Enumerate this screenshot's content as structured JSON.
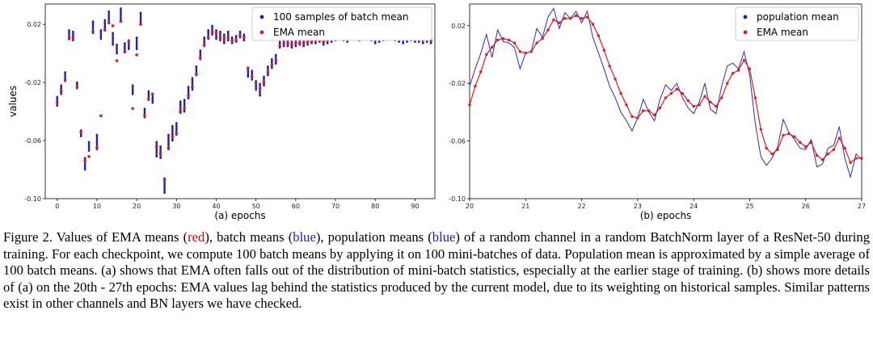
{
  "colors": {
    "blue": "#1f1fbf",
    "red": "#e31a1c",
    "line": "#2a2ad0"
  },
  "chart_data": [
    {
      "type": "scatter",
      "title": "",
      "xlabel": "(a) epochs",
      "ylabel": "values",
      "xlim": [
        -3,
        95
      ],
      "ylim": [
        -0.1,
        0.034
      ],
      "xticks": [
        "0",
        "10",
        "20",
        "30",
        "40",
        "50",
        "60",
        "70",
        "80",
        "90"
      ],
      "yticks": [
        "0.02",
        "-0.02",
        "-0.06",
        "-0.10"
      ],
      "legend": [
        "100 samples of batch mean",
        "EMA mean"
      ],
      "legend_position": "top-right",
      "x": [
        0,
        1,
        2,
        3,
        4,
        5,
        6,
        7,
        8,
        9,
        10,
        11,
        12,
        13,
        14,
        15,
        16,
        17,
        18,
        19,
        20,
        21,
        22,
        23,
        24,
        25,
        26,
        27,
        28,
        29,
        30,
        31,
        32,
        33,
        34,
        35,
        36,
        37,
        38,
        39,
        40,
        41,
        42,
        43,
        44,
        45,
        46,
        47,
        48,
        49,
        50,
        51,
        52,
        53,
        54,
        55,
        56,
        57,
        58,
        59,
        60,
        61,
        62,
        63,
        64,
        65,
        66,
        67,
        68,
        69,
        70,
        71,
        72,
        73,
        74,
        75,
        76,
        77,
        78,
        79,
        80,
        81,
        82,
        83,
        84,
        85,
        86,
        87,
        88,
        89,
        90,
        91,
        92,
        93,
        94
      ],
      "series": [
        {
          "name": "100 samples of batch mean",
          "values": [
            -0.033,
            -0.025,
            -0.016,
            0.013,
            0.012,
            -0.022,
            -0.055,
            -0.076,
            -0.064,
            0.018,
            -0.061,
            0.013,
            0.02,
            0.025,
            0.01,
            0.003,
            0.027,
            0.004,
            0.006,
            -0.025,
            0.007,
            0.024,
            -0.041,
            -0.029,
            -0.031,
            -0.066,
            -0.068,
            -0.091,
            -0.061,
            -0.055,
            -0.052,
            -0.037,
            -0.036,
            -0.027,
            -0.021,
            -0.012,
            -0.001,
            0.008,
            0.013,
            0.016,
            0.013,
            0.012,
            0.01,
            0.012,
            0.009,
            0.01,
            0.013,
            0.011,
            -0.013,
            -0.015,
            -0.022,
            -0.025,
            -0.019,
            -0.012,
            -0.007,
            -0.004,
            0.006,
            0.007,
            0.007,
            0.006,
            0.007,
            0.008,
            0.007,
            0.008,
            0.009,
            0.009,
            0.01,
            0.008,
            0.009,
            0.01,
            0.011,
            0.012,
            0.011,
            0.01,
            0.012,
            0.013,
            0.011,
            0.013,
            0.012,
            0.011,
            0.009,
            0.01,
            0.011,
            0.012,
            0.012,
            0.011,
            0.01,
            0.009,
            0.01,
            0.011,
            0.01,
            0.01,
            0.009,
            0.01,
            0.009
          ],
          "error": [
            0.003,
            0.003,
            0.003,
            0.003,
            0.003,
            0.002,
            0.002,
            0.004,
            0.003,
            0.004,
            0.005,
            0.003,
            0.003,
            0.004,
            0.004,
            0.003,
            0.004,
            0.003,
            0.003,
            0.003,
            0.004,
            0.004,
            0.003,
            0.003,
            0.003,
            0.005,
            0.004,
            0.005,
            0.005,
            0.005,
            0.004,
            0.004,
            0.004,
            0.004,
            0.004,
            0.003,
            0.003,
            0.003,
            0.003,
            0.003,
            0.003,
            0.003,
            0.003,
            0.003,
            0.002,
            0.002,
            0.002,
            0.002,
            0.003,
            0.003,
            0.003,
            0.004,
            0.003,
            0.003,
            0.003,
            0.003,
            0.002,
            0.002,
            0.002,
            0.002,
            0.002,
            0.002,
            0.002,
            0.002,
            0.002,
            0.002,
            0.002,
            0.002,
            0.002,
            0.002,
            0.002,
            0.002,
            0.002,
            0.002,
            0.002,
            0.002,
            0.002,
            0.002,
            0.002,
            0.002,
            0.002,
            0.002,
            0.002,
            0.002,
            0.002,
            0.002,
            0.002,
            0.002,
            0.002,
            0.002,
            0.002,
            0.002,
            0.002,
            0.002,
            0.002
          ]
        },
        {
          "name": "EMA mean",
          "values": [
            -0.034,
            -0.026,
            -0.018,
            0.01,
            0.011,
            -0.023,
            -0.054,
            -0.074,
            -0.071,
            0.015,
            -0.065,
            -0.043,
            0.016,
            0.021,
            0.019,
            -0.005,
            0.022,
            0.001,
            0.008,
            -0.038,
            -0.001,
            0.02,
            -0.043,
            -0.031,
            -0.028,
            -0.064,
            -0.069,
            -0.087,
            -0.065,
            -0.057,
            -0.055,
            -0.04,
            -0.038,
            -0.029,
            -0.023,
            -0.014,
            -0.003,
            0.006,
            0.011,
            0.015,
            0.014,
            0.011,
            0.01,
            0.011,
            0.009,
            0.009,
            0.012,
            0.011,
            -0.01,
            -0.016,
            -0.02,
            -0.024,
            -0.02,
            -0.013,
            -0.008,
            -0.005,
            0.005,
            0.007,
            0.007,
            0.006,
            0.007,
            0.007,
            0.007,
            0.008,
            0.008,
            0.009,
            0.009,
            0.008,
            0.009,
            0.01,
            0.01,
            0.011,
            0.011,
            0.01,
            0.011,
            0.012,
            0.011,
            0.012,
            0.012,
            0.011,
            0.01,
            0.01,
            0.011,
            0.011,
            0.012,
            0.011,
            0.01,
            0.01,
            0.01,
            0.01,
            0.01,
            0.01,
            0.009,
            0.01,
            0.009
          ]
        }
      ]
    },
    {
      "type": "line",
      "title": "",
      "xlabel": "(b) epochs",
      "ylabel": "",
      "xlim": [
        20,
        27
      ],
      "ylim": [
        -0.1,
        0.035
      ],
      "xticks": [
        "20",
        "21",
        "22",
        "23",
        "24",
        "25",
        "26",
        "27"
      ],
      "yticks": [
        "0.02",
        "-0.02",
        "-0.06",
        "-0.10"
      ],
      "legend": [
        "population mean",
        "EMA mean"
      ],
      "legend_position": "top-right",
      "series": [
        {
          "name": "population mean",
          "x": [
            20.0,
            20.1,
            20.2,
            20.3,
            20.4,
            20.5,
            20.6,
            20.7,
            20.8,
            20.9,
            21.0,
            21.1,
            21.2,
            21.3,
            21.4,
            21.5,
            21.6,
            21.7,
            21.8,
            21.9,
            22.0,
            22.1,
            22.2,
            22.3,
            22.4,
            22.5,
            22.6,
            22.7,
            22.8,
            22.9,
            23.0,
            23.1,
            23.2,
            23.3,
            23.4,
            23.5,
            23.6,
            23.7,
            23.8,
            23.9,
            24.0,
            24.1,
            24.2,
            24.3,
            24.4,
            24.5,
            24.6,
            24.7,
            24.8,
            24.9,
            25.0,
            25.1,
            25.2,
            25.3,
            25.4,
            25.5,
            25.6,
            25.7,
            25.8,
            25.9,
            26.0,
            26.1,
            26.2,
            26.3,
            26.4,
            26.5,
            26.6,
            26.7,
            26.8,
            26.9,
            27.0
          ],
          "values": [
            -0.022,
            -0.01,
            0.001,
            0.014,
            -0.002,
            0.017,
            0.009,
            0.008,
            0.005,
            -0.01,
            0.001,
            0.002,
            0.018,
            0.012,
            0.026,
            0.032,
            0.018,
            0.029,
            0.025,
            0.03,
            0.022,
            0.03,
            0.012,
            0.001,
            -0.01,
            -0.022,
            -0.03,
            -0.04,
            -0.046,
            -0.053,
            -0.044,
            -0.031,
            -0.04,
            -0.046,
            -0.031,
            -0.021,
            -0.025,
            -0.02,
            -0.03,
            -0.037,
            -0.041,
            -0.033,
            -0.02,
            -0.038,
            -0.041,
            -0.022,
            -0.008,
            -0.006,
            -0.01,
            0.002,
            -0.014,
            -0.048,
            -0.071,
            -0.077,
            -0.072,
            -0.064,
            -0.045,
            -0.054,
            -0.059,
            -0.065,
            -0.066,
            -0.059,
            -0.078,
            -0.076,
            -0.065,
            -0.063,
            -0.05,
            -0.072,
            -0.085,
            -0.069,
            -0.073
          ]
        },
        {
          "name": "EMA mean",
          "x": [
            20.0,
            20.1,
            20.2,
            20.3,
            20.4,
            20.5,
            20.6,
            20.7,
            20.8,
            20.9,
            21.0,
            21.1,
            21.2,
            21.3,
            21.4,
            21.5,
            21.6,
            21.7,
            21.8,
            21.9,
            22.0,
            22.1,
            22.2,
            22.3,
            22.4,
            22.5,
            22.6,
            22.7,
            22.8,
            22.9,
            23.0,
            23.1,
            23.2,
            23.3,
            23.4,
            23.5,
            23.6,
            23.7,
            23.8,
            23.9,
            24.0,
            24.1,
            24.2,
            24.3,
            24.4,
            24.5,
            24.6,
            24.7,
            24.8,
            24.9,
            25.0,
            25.1,
            25.2,
            25.3,
            25.4,
            25.5,
            25.6,
            25.7,
            25.8,
            25.9,
            26.0,
            26.1,
            26.2,
            26.3,
            26.4,
            26.5,
            26.6,
            26.7,
            26.8,
            26.9,
            27.0
          ],
          "values": [
            -0.035,
            -0.022,
            -0.012,
            0.0,
            0.005,
            0.01,
            0.011,
            0.01,
            0.008,
            0.002,
            0.001,
            0.002,
            0.008,
            0.011,
            0.017,
            0.024,
            0.022,
            0.025,
            0.025,
            0.027,
            0.025,
            0.026,
            0.021,
            0.013,
            0.003,
            -0.008,
            -0.017,
            -0.027,
            -0.035,
            -0.043,
            -0.044,
            -0.039,
            -0.039,
            -0.042,
            -0.037,
            -0.03,
            -0.027,
            -0.024,
            -0.027,
            -0.032,
            -0.036,
            -0.035,
            -0.029,
            -0.033,
            -0.036,
            -0.03,
            -0.02,
            -0.013,
            -0.011,
            -0.004,
            -0.01,
            -0.03,
            -0.052,
            -0.065,
            -0.069,
            -0.066,
            -0.056,
            -0.055,
            -0.057,
            -0.061,
            -0.064,
            -0.061,
            -0.07,
            -0.073,
            -0.069,
            -0.066,
            -0.058,
            -0.065,
            -0.075,
            -0.072,
            -0.072
          ]
        }
      ]
    }
  ],
  "caption": {
    "p1": "Figure 2.  Values of EMA means (",
    "red_word": "red",
    "p2": "), batch means (",
    "blue_word1": "blue",
    "p3": "), population means (",
    "blue_word2": "blue",
    "p4": ") of a random channel in a random BatchNorm layer of a ResNet-50 during training. For each checkpoint, we compute 100 batch means by applying it on 100 mini-batches of data. Population mean is approximated by a simple average of 100 batch means.  (a) shows that EMA often falls out of the distribution of mini-batch statistics, especially at the earlier stage of training.  (b) shows more details of (a) on the 20th - 27th epochs: EMA values lag behind the statistics produced by the current model, due to its weighting on historical samples. Similar patterns exist in other channels and BN layers we have checked."
  }
}
